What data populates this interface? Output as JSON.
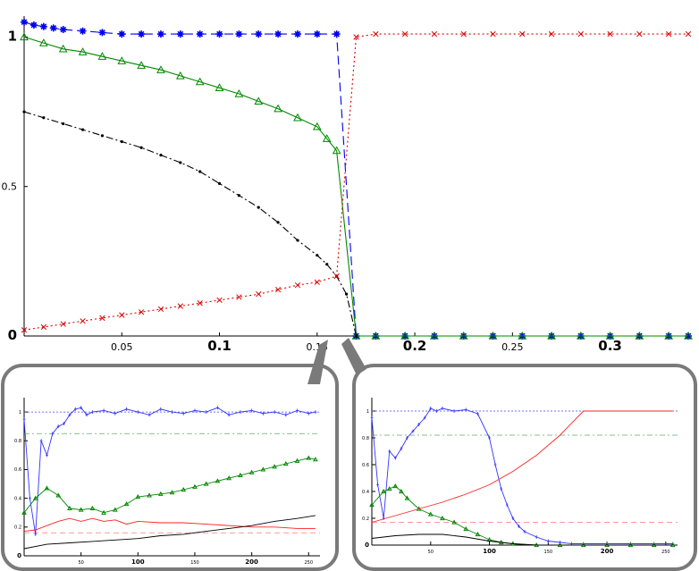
{
  "chart_data": [
    {
      "type": "line",
      "xlim": [
        0.0,
        0.34
      ],
      "ylim": [
        0,
        1.07
      ],
      "xticks": [
        {
          "value": 0.05,
          "label": "0.05",
          "bold": false
        },
        {
          "value": 0.1,
          "label": "0.1",
          "bold": true
        },
        {
          "value": 0.15,
          "label": "0.15",
          "bold": false
        },
        {
          "value": 0.2,
          "label": "0.2",
          "bold": true
        },
        {
          "value": 0.25,
          "label": "0.25",
          "bold": false
        },
        {
          "value": 0.3,
          "label": "0.3",
          "bold": true
        }
      ],
      "yticks": [
        {
          "value": 0,
          "label": "0",
          "bold": true
        },
        {
          "value": 0.5,
          "label": "0.5",
          "bold": false
        },
        {
          "value": 1,
          "label": "1",
          "bold": true
        }
      ],
      "series": [
        {
          "color": "#0000ee",
          "marker": "star",
          "dash": "10,5",
          "x": [
            0.0,
            0.005,
            0.01,
            0.015,
            0.02,
            0.03,
            0.04,
            0.05,
            0.06,
            0.07,
            0.08,
            0.09,
            0.1,
            0.11,
            0.12,
            0.13,
            0.14,
            0.15,
            0.16,
            0.17,
            0.18,
            0.195,
            0.21,
            0.225,
            0.24,
            0.255,
            0.27,
            0.285,
            0.3,
            0.315,
            0.33,
            0.34
          ],
          "y": [
            1.05,
            1.04,
            1.035,
            1.03,
            1.025,
            1.02,
            1.015,
            1.01,
            1.01,
            1.01,
            1.01,
            1.01,
            1.01,
            1.01,
            1.01,
            1.01,
            1.01,
            1.01,
            1.01,
            0.0,
            0.0,
            0.0,
            0.0,
            0.0,
            0.0,
            0.0,
            0.0,
            0.0,
            0.0,
            0.0,
            0.0,
            0.0
          ]
        },
        {
          "color": "#008800",
          "marker": "triangle",
          "dash": "",
          "x": [
            0.0,
            0.01,
            0.02,
            0.03,
            0.04,
            0.05,
            0.06,
            0.07,
            0.08,
            0.09,
            0.1,
            0.11,
            0.12,
            0.13,
            0.14,
            0.15,
            0.155,
            0.16,
            0.17,
            0.18,
            0.195,
            0.21,
            0.225,
            0.24,
            0.255,
            0.27,
            0.285,
            0.3,
            0.315,
            0.33,
            0.34
          ],
          "y": [
            1.0,
            0.98,
            0.96,
            0.95,
            0.935,
            0.92,
            0.905,
            0.89,
            0.87,
            0.85,
            0.83,
            0.81,
            0.785,
            0.76,
            0.73,
            0.7,
            0.66,
            0.62,
            0.0,
            0.0,
            0.0,
            0.0,
            0.0,
            0.0,
            0.0,
            0.0,
            0.0,
            0.0,
            0.0,
            0.0,
            0.0
          ]
        },
        {
          "color": "#000000",
          "marker": "dot",
          "dash": "8,3,2,3",
          "x": [
            0.0,
            0.01,
            0.02,
            0.03,
            0.04,
            0.05,
            0.06,
            0.07,
            0.08,
            0.09,
            0.1,
            0.11,
            0.12,
            0.13,
            0.14,
            0.15,
            0.155,
            0.16,
            0.165,
            0.17
          ],
          "y": [
            0.75,
            0.73,
            0.71,
            0.69,
            0.67,
            0.65,
            0.63,
            0.605,
            0.58,
            0.55,
            0.51,
            0.47,
            0.43,
            0.38,
            0.32,
            0.27,
            0.24,
            0.2,
            0.14,
            0.0
          ]
        },
        {
          "color": "#dd0000",
          "marker": "cross",
          "dash": "2,3",
          "x": [
            0.0,
            0.01,
            0.02,
            0.03,
            0.04,
            0.05,
            0.06,
            0.07,
            0.08,
            0.09,
            0.1,
            0.11,
            0.12,
            0.13,
            0.14,
            0.15,
            0.16,
            0.17,
            0.18,
            0.195,
            0.21,
            0.225,
            0.24,
            0.255,
            0.27,
            0.285,
            0.3,
            0.315,
            0.33,
            0.34
          ],
          "y": [
            0.02,
            0.03,
            0.04,
            0.05,
            0.06,
            0.07,
            0.08,
            0.09,
            0.1,
            0.11,
            0.12,
            0.13,
            0.14,
            0.155,
            0.17,
            0.18,
            0.2,
            1.0,
            1.01,
            1.01,
            1.01,
            1.01,
            1.01,
            1.01,
            1.01,
            1.01,
            1.01,
            1.01,
            1.01,
            1.01
          ]
        }
      ]
    },
    {
      "type": "line",
      "xlim": [
        0,
        260
      ],
      "ylim": [
        0,
        1.1
      ],
      "xticks": [
        {
          "value": 50,
          "label": "50",
          "bold": false
        },
        {
          "value": 100,
          "label": "100",
          "bold": true
        },
        {
          "value": 150,
          "label": "150",
          "bold": false
        },
        {
          "value": 200,
          "label": "200",
          "bold": true
        },
        {
          "value": 250,
          "label": "250",
          "bold": false
        }
      ],
      "yticks": [
        {
          "value": 0,
          "label": "0",
          "bold": true
        },
        {
          "value": 0.2,
          "label": "0.2",
          "bold": false
        },
        {
          "value": 0.4,
          "label": "0.4",
          "bold": false
        },
        {
          "value": 0.6,
          "label": "0.6",
          "bold": false
        },
        {
          "value": 0.8,
          "label": "0.8",
          "bold": false
        },
        {
          "value": 1,
          "label": "1",
          "bold": false
        }
      ],
      "reference_lines": [
        {
          "y": 1.0,
          "color": "#4444ff",
          "dash": "2,2"
        },
        {
          "y": 0.85,
          "color": "#66aa66",
          "dash": "6,3,2,3"
        },
        {
          "y": 0.16,
          "color": "#ff7777",
          "dash": "6,4"
        }
      ],
      "series": [
        {
          "color": "#3333ff",
          "marker": "tick",
          "x": [
            0,
            5,
            10,
            15,
            20,
            25,
            30,
            35,
            40,
            45,
            50,
            55,
            60,
            70,
            80,
            90,
            100,
            110,
            120,
            130,
            140,
            150,
            160,
            170,
            180,
            190,
            200,
            210,
            220,
            230,
            240,
            250,
            256
          ],
          "y": [
            0.95,
            0.4,
            0.15,
            0.8,
            0.7,
            0.85,
            0.9,
            0.92,
            0.98,
            1.02,
            1.03,
            0.98,
            1.0,
            1.01,
            0.99,
            1.02,
            1.0,
            0.98,
            1.02,
            1.0,
            0.99,
            1.01,
            1.0,
            1.03,
            0.98,
            1.0,
            1.01,
            0.99,
            1.0,
            0.98,
            1.01,
            0.99,
            1.0
          ]
        },
        {
          "color": "#008800",
          "marker": "triangle",
          "x": [
            0,
            10,
            20,
            30,
            40,
            50,
            60,
            70,
            80,
            90,
            100,
            110,
            120,
            130,
            140,
            150,
            160,
            170,
            180,
            190,
            200,
            210,
            220,
            230,
            240,
            250,
            256
          ],
          "y": [
            0.3,
            0.4,
            0.47,
            0.42,
            0.33,
            0.32,
            0.33,
            0.3,
            0.32,
            0.36,
            0.41,
            0.42,
            0.43,
            0.44,
            0.46,
            0.48,
            0.5,
            0.52,
            0.54,
            0.56,
            0.58,
            0.6,
            0.62,
            0.64,
            0.66,
            0.68,
            0.67
          ]
        },
        {
          "color": "#ff2222",
          "marker": "none",
          "x": [
            0,
            10,
            20,
            30,
            40,
            50,
            60,
            70,
            80,
            90,
            100,
            120,
            140,
            160,
            180,
            200,
            220,
            240,
            256
          ],
          "y": [
            0.17,
            0.18,
            0.21,
            0.24,
            0.26,
            0.24,
            0.26,
            0.24,
            0.25,
            0.22,
            0.24,
            0.23,
            0.23,
            0.22,
            0.21,
            0.2,
            0.2,
            0.19,
            0.19
          ]
        },
        {
          "color": "#000000",
          "marker": "none",
          "x": [
            0,
            20,
            40,
            60,
            80,
            100,
            120,
            140,
            160,
            180,
            200,
            220,
            240,
            256
          ],
          "y": [
            0.05,
            0.08,
            0.09,
            0.1,
            0.11,
            0.12,
            0.14,
            0.15,
            0.17,
            0.19,
            0.21,
            0.24,
            0.26,
            0.28
          ]
        }
      ]
    },
    {
      "type": "line",
      "xlim": [
        0,
        260
      ],
      "ylim": [
        0,
        1.1
      ],
      "xticks": [
        {
          "value": 50,
          "label": "50",
          "bold": false
        },
        {
          "value": 100,
          "label": "100",
          "bold": true
        },
        {
          "value": 150,
          "label": "150",
          "bold": false
        },
        {
          "value": 200,
          "label": "200",
          "bold": true
        },
        {
          "value": 250,
          "label": "250",
          "bold": false
        }
      ],
      "yticks": [
        {
          "value": 0,
          "label": "0",
          "bold": true
        },
        {
          "value": 0.2,
          "label": "0.2",
          "bold": false
        },
        {
          "value": 0.4,
          "label": "0.4",
          "bold": false
        },
        {
          "value": 0.6,
          "label": "0.6",
          "bold": false
        },
        {
          "value": 0.8,
          "label": "0.8",
          "bold": false
        },
        {
          "value": 1,
          "label": "1",
          "bold": false
        }
      ],
      "reference_lines": [
        {
          "y": 1.0,
          "color": "#4444ff",
          "dash": "2,2"
        },
        {
          "y": 0.82,
          "color": "#66aa66",
          "dash": "6,3,2,3"
        },
        {
          "y": 0.17,
          "color": "#ff7777",
          "dash": "6,4"
        }
      ],
      "series": [
        {
          "color": "#3333ff",
          "marker": "tick",
          "x": [
            0,
            5,
            10,
            15,
            20,
            25,
            30,
            35,
            40,
            45,
            50,
            55,
            60,
            70,
            80,
            90,
            100,
            105,
            110,
            115,
            120,
            125,
            130,
            140,
            150,
            160,
            170,
            180,
            200,
            220,
            240,
            256
          ],
          "y": [
            0.95,
            0.45,
            0.2,
            0.7,
            0.65,
            0.72,
            0.8,
            0.85,
            0.9,
            0.95,
            1.02,
            1.0,
            1.02,
            1.0,
            1.01,
            0.98,
            0.8,
            0.6,
            0.42,
            0.3,
            0.2,
            0.14,
            0.1,
            0.06,
            0.03,
            0.02,
            0.01,
            0.01,
            0.01,
            0.01,
            0.01,
            0.01
          ]
        },
        {
          "color": "#008800",
          "marker": "triangle",
          "x": [
            0,
            10,
            15,
            20,
            25,
            30,
            40,
            50,
            60,
            70,
            80,
            90,
            100,
            110,
            120,
            140,
            160,
            180,
            200,
            220,
            240,
            256
          ],
          "y": [
            0.3,
            0.4,
            0.42,
            0.44,
            0.4,
            0.35,
            0.27,
            0.23,
            0.2,
            0.17,
            0.12,
            0.08,
            0.04,
            0.02,
            0.01,
            0.0,
            0.0,
            0.0,
            0.0,
            0.0,
            0.0,
            0.0
          ]
        },
        {
          "color": "#ff2222",
          "marker": "none",
          "x": [
            0,
            20,
            40,
            60,
            80,
            100,
            120,
            140,
            160,
            180,
            200,
            220,
            240,
            256
          ],
          "y": [
            0.17,
            0.22,
            0.27,
            0.32,
            0.38,
            0.45,
            0.55,
            0.67,
            0.82,
            1.0,
            1.0,
            1.0,
            1.0,
            1.0
          ]
        },
        {
          "color": "#000000",
          "marker": "none",
          "x": [
            0,
            20,
            40,
            60,
            80,
            100,
            110,
            120,
            140,
            160,
            180,
            200,
            240,
            256
          ],
          "y": [
            0.05,
            0.07,
            0.08,
            0.08,
            0.06,
            0.03,
            0.02,
            0.01,
            0.0,
            0.0,
            0.0,
            0.0,
            0.0,
            0.0
          ]
        }
      ]
    }
  ]
}
